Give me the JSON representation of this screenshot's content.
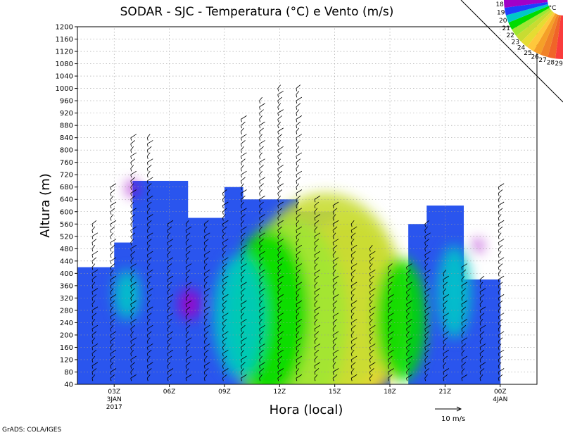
{
  "chart_data": {
    "type": "heatmap",
    "title": "SODAR - SJC - Temperatura (°C) e Vento (m/s)",
    "xlabel": "Hora (local)",
    "ylabel": "Altura (m)",
    "ylim": [
      40,
      1200
    ],
    "y_ticks": [
      40,
      80,
      120,
      160,
      200,
      240,
      280,
      320,
      360,
      400,
      440,
      480,
      520,
      560,
      600,
      640,
      680,
      720,
      760,
      800,
      840,
      880,
      920,
      960,
      1000,
      1040,
      1080,
      1120,
      1160,
      1200
    ],
    "x_range_hours": [
      0,
      25
    ],
    "x_ticks": [
      {
        "hour": 2,
        "label": "03Z",
        "sub": [
          "3JAN",
          "2017"
        ]
      },
      {
        "hour": 5,
        "label": "06Z",
        "sub": []
      },
      {
        "hour": 8,
        "label": "09Z",
        "sub": []
      },
      {
        "hour": 11,
        "label": "12Z",
        "sub": []
      },
      {
        "hour": 14,
        "label": "15Z",
        "sub": []
      },
      {
        "hour": 17,
        "label": "18Z",
        "sub": []
      },
      {
        "hour": 20,
        "label": "21Z",
        "sub": []
      },
      {
        "hour": 23,
        "label": "00Z",
        "sub": [
          "4JAN"
        ]
      }
    ],
    "grid": true,
    "colorbar": {
      "unit": "°C",
      "labels": [
        "29",
        "28",
        "27",
        "26",
        "25",
        "24",
        "23",
        "22",
        "21",
        "20",
        "19",
        "18"
      ],
      "colors": [
        "#fa3c3c",
        "#f06428",
        "#f08228",
        "#f5a028",
        "#ffc83c",
        "#e6dc32",
        "#c8dc32",
        "#a0e632",
        "#00dc00",
        "#00c8c8",
        "#1e3cff",
        "#a000c8"
      ],
      "placement": "top-right"
    },
    "temperature_top": [
      {
        "hours": [
          0,
          1
        ],
        "top_m": 420
      },
      {
        "hours": [
          1,
          2
        ],
        "top_m": 420
      },
      {
        "hours": [
          2,
          3
        ],
        "top_m": 500
      },
      {
        "hours": [
          3,
          4
        ],
        "top_m": 700
      },
      {
        "hours": [
          4,
          6
        ],
        "top_m": 700
      },
      {
        "hours": [
          6,
          8
        ],
        "top_m": 580
      },
      {
        "hours": [
          8,
          9
        ],
        "top_m": 680
      },
      {
        "hours": [
          9,
          11
        ],
        "top_m": 640
      },
      {
        "hours": [
          11,
          12
        ],
        "top_m": 640
      },
      {
        "hours": [
          12,
          13
        ],
        "top_m": 600
      },
      {
        "hours": [
          13,
          14
        ],
        "top_m": 600
      },
      {
        "hours": [
          14,
          15
        ],
        "top_m": 540
      },
      {
        "hours": [
          15,
          16
        ],
        "top_m": 480
      },
      {
        "hours": [
          16,
          17
        ],
        "top_m": 420
      },
      {
        "hours": [
          18,
          19
        ],
        "top_m": 560
      },
      {
        "hours": [
          19,
          21
        ],
        "top_m": 620
      },
      {
        "hours": [
          21,
          23
        ],
        "top_m": 380
      }
    ],
    "temperature_blobs": [
      {
        "hour": 15.6,
        "alt_m": 90,
        "rh": 1.4,
        "ra": 90,
        "temp": 28
      },
      {
        "hour": 15.3,
        "alt_m": 170,
        "rh": 2.2,
        "ra": 170,
        "temp": 27
      },
      {
        "hour": 14.9,
        "alt_m": 240,
        "rh": 2.8,
        "ra": 230,
        "temp": 25
      },
      {
        "hour": 14.6,
        "alt_m": 280,
        "rh": 3.4,
        "ra": 300,
        "temp": 24
      },
      {
        "hour": 13.5,
        "alt_m": 330,
        "rh": 4.2,
        "ra": 330,
        "temp": 23
      },
      {
        "hour": 11.5,
        "alt_m": 250,
        "rh": 3.2,
        "ra": 330,
        "temp": 22
      },
      {
        "hour": 10.4,
        "alt_m": 270,
        "rh": 2.2,
        "ra": 270,
        "temp": 21
      },
      {
        "hour": 8.8,
        "alt_m": 260,
        "rh": 1.4,
        "ra": 200,
        "temp": 20
      },
      {
        "hour": 17.6,
        "alt_m": 250,
        "rh": 1.4,
        "ra": 200,
        "temp": 21
      },
      {
        "hour": 2.7,
        "alt_m": 330,
        "rh": 0.7,
        "ra": 80,
        "temp": 20
      },
      {
        "hour": 20.5,
        "alt_m": 340,
        "rh": 0.9,
        "ra": 150,
        "temp": 20
      },
      {
        "hour": 6.1,
        "alt_m": 300,
        "rh": 0.6,
        "ra": 50,
        "temp": 18
      },
      {
        "hour": 3.0,
        "alt_m": 675,
        "rh": 0.3,
        "ra": 25,
        "temp": 18
      },
      {
        "hour": 21.8,
        "alt_m": 490,
        "rh": 0.25,
        "ra": 20,
        "temp": 18
      }
    ],
    "wind_columns": [
      {
        "hour": 0.8,
        "top_m": 560
      },
      {
        "hour": 1.8,
        "top_m": 680
      },
      {
        "hour": 2.9,
        "top_m": 840
      },
      {
        "hour": 3.8,
        "top_m": 850
      },
      {
        "hour": 4.9,
        "top_m": 560
      },
      {
        "hour": 5.9,
        "top_m": 560
      },
      {
        "hour": 6.9,
        "top_m": 560
      },
      {
        "hour": 7.9,
        "top_m": 660
      },
      {
        "hour": 8.9,
        "top_m": 900
      },
      {
        "hour": 9.9,
        "top_m": 960
      },
      {
        "hour": 10.9,
        "top_m": 1000
      },
      {
        "hour": 11.9,
        "top_m": 1000
      },
      {
        "hour": 12.9,
        "top_m": 640
      },
      {
        "hour": 13.9,
        "top_m": 620
      },
      {
        "hour": 14.9,
        "top_m": 560
      },
      {
        "hour": 15.9,
        "top_m": 480
      },
      {
        "hour": 16.9,
        "top_m": 420
      },
      {
        "hour": 17.9,
        "top_m": 420
      },
      {
        "hour": 18.9,
        "top_m": 560
      },
      {
        "hour": 19.9,
        "top_m": 400
      },
      {
        "hour": 20.9,
        "top_m": 420
      },
      {
        "hour": 21.9,
        "top_m": 380
      },
      {
        "hour": 22.9,
        "top_m": 680
      }
    ],
    "wind_reference": {
      "label": "10 m/s"
    }
  },
  "footer": {
    "credit": "GrADS: COLA/IGES"
  }
}
